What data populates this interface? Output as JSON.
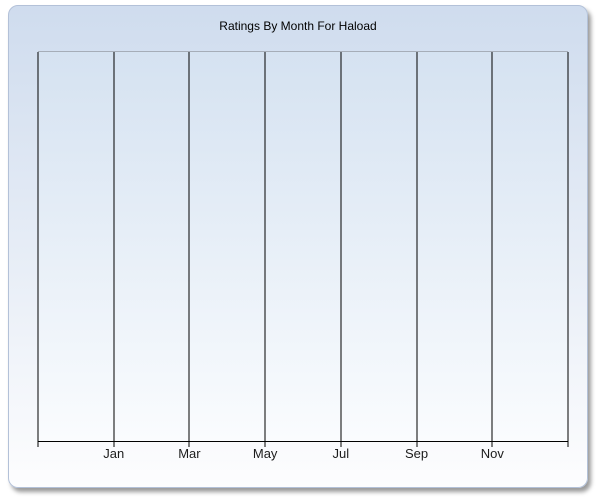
{
  "chart": {
    "colors": {
      "container_background_top": "#cfdcee",
      "container_background_bottom": "#fdfdfe",
      "container_border": "#b3c1d8",
      "drop_shadow": "#9b9b9b",
      "plot_background_top": "#d5e2f1",
      "plot_background_bottom": "#fafcfe",
      "plot_top_border": "#a6adb8",
      "gridline": "#000000",
      "title_text": "#000000",
      "axis_label_text": "#1c1c1c"
    }
  },
  "chart_data": {
    "type": "line",
    "title": "Ratings By Month For Haload",
    "xlabel": "",
    "ylabel": "",
    "series": [],
    "plot_empty": true,
    "x_axis": {
      "tick_labels": [
        "Jan",
        "Mar",
        "May",
        "Jul",
        "Sep",
        "Nov"
      ],
      "label_positions": [
        0.142857,
        0.285714,
        0.428571,
        0.571429,
        0.714286,
        0.857143
      ],
      "gridline_positions": [
        0,
        0.142857,
        0.285714,
        0.428571,
        0.571429,
        0.714286,
        0.857143,
        1
      ],
      "gridlines_visible": true,
      "ticks_visible": true
    },
    "y_axis": {
      "tick_labels": [],
      "gridlines_visible": false
    },
    "legend": {
      "visible": false
    }
  }
}
